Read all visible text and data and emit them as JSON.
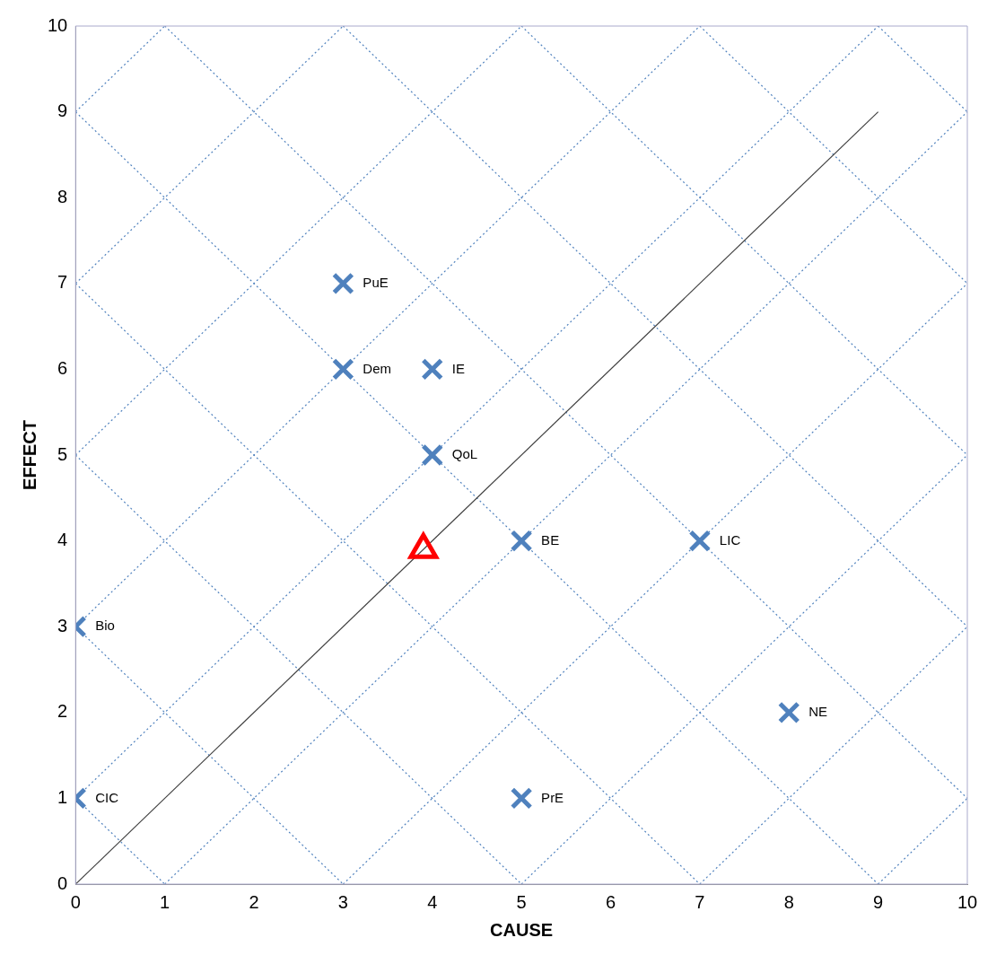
{
  "chart_data": {
    "type": "scatter",
    "xlabel": "CAUSE",
    "ylabel": "EFFECT",
    "xlim": [
      0,
      10
    ],
    "ylim": [
      0,
      10
    ],
    "xticks": [
      0,
      1,
      2,
      3,
      4,
      5,
      6,
      7,
      8,
      9,
      10
    ],
    "yticks": [
      0,
      1,
      2,
      3,
      4,
      5,
      6,
      7,
      8,
      9,
      10
    ],
    "grid": false,
    "legend": false,
    "series": [
      {
        "type": "line",
        "color": "#4f81bd",
        "line_style": "dotted",
        "marker": "none",
        "x": [
          0,
          1
        ],
        "values": [
          1,
          0
        ]
      },
      {
        "type": "line",
        "color": "#4f81bd",
        "line_style": "dotted",
        "marker": "none",
        "x": [
          0,
          3
        ],
        "values": [
          3,
          0
        ]
      },
      {
        "type": "line",
        "color": "#4f81bd",
        "line_style": "dotted",
        "marker": "none",
        "x": [
          0,
          5
        ],
        "values": [
          5,
          0
        ]
      },
      {
        "type": "line",
        "color": "#4f81bd",
        "line_style": "dotted",
        "marker": "none",
        "x": [
          0,
          7
        ],
        "values": [
          7,
          0
        ]
      },
      {
        "type": "line",
        "color": "#4f81bd",
        "line_style": "dotted",
        "marker": "none",
        "x": [
          0,
          9
        ],
        "values": [
          9,
          0
        ]
      },
      {
        "type": "line",
        "color": "#4f81bd",
        "line_style": "dotted",
        "marker": "none",
        "x": [
          1,
          10
        ],
        "values": [
          10,
          1
        ]
      },
      {
        "type": "line",
        "color": "#4f81bd",
        "line_style": "dotted",
        "marker": "none",
        "x": [
          3,
          10
        ],
        "values": [
          10,
          3
        ]
      },
      {
        "type": "line",
        "color": "#4f81bd",
        "line_style": "dotted",
        "marker": "none",
        "x": [
          5,
          10
        ],
        "values": [
          10,
          5
        ]
      },
      {
        "type": "line",
        "color": "#4f81bd",
        "line_style": "dotted",
        "marker": "none",
        "x": [
          7,
          10
        ],
        "values": [
          10,
          7
        ]
      },
      {
        "type": "line",
        "color": "#4f81bd",
        "line_style": "dotted",
        "marker": "none",
        "x": [
          9,
          10
        ],
        "values": [
          10,
          9
        ]
      },
      {
        "type": "line",
        "color": "#4f81bd",
        "line_style": "dotted",
        "marker": "none",
        "x": [
          0,
          1
        ],
        "values": [
          9,
          10
        ]
      },
      {
        "type": "line",
        "color": "#4f81bd",
        "line_style": "dotted",
        "marker": "none",
        "x": [
          0,
          3
        ],
        "values": [
          7,
          10
        ]
      },
      {
        "type": "line",
        "color": "#4f81bd",
        "line_style": "dotted",
        "marker": "none",
        "x": [
          0,
          5
        ],
        "values": [
          5,
          10
        ]
      },
      {
        "type": "line",
        "color": "#4f81bd",
        "line_style": "dotted",
        "marker": "none",
        "x": [
          0,
          7
        ],
        "values": [
          3,
          10
        ]
      },
      {
        "type": "line",
        "color": "#4f81bd",
        "line_style": "dotted",
        "marker": "none",
        "x": [
          0,
          9
        ],
        "values": [
          1,
          10
        ]
      },
      {
        "type": "line",
        "color": "#4f81bd",
        "line_style": "dotted",
        "marker": "none",
        "x": [
          1,
          10
        ],
        "values": [
          0,
          9
        ]
      },
      {
        "type": "line",
        "color": "#4f81bd",
        "line_style": "dotted",
        "marker": "none",
        "x": [
          3,
          10
        ],
        "values": [
          0,
          7
        ]
      },
      {
        "type": "line",
        "color": "#4f81bd",
        "line_style": "dotted",
        "marker": "none",
        "x": [
          5,
          10
        ],
        "values": [
          0,
          5
        ]
      },
      {
        "type": "line",
        "color": "#4f81bd",
        "line_style": "dotted",
        "marker": "none",
        "x": [
          7,
          10
        ],
        "values": [
          0,
          3
        ]
      },
      {
        "type": "line",
        "color": "#4f81bd",
        "line_style": "dotted",
        "marker": "none",
        "x": [
          9,
          10
        ],
        "values": [
          0,
          1
        ]
      },
      {
        "type": "line",
        "color": "#404040",
        "line_style": "solid",
        "marker": "none",
        "x": [
          0,
          9
        ],
        "values": [
          0,
          9
        ]
      },
      {
        "color": "#4f81bd",
        "marker": "cross",
        "x": [
          0,
          0,
          3,
          3,
          4,
          4,
          5,
          7,
          8,
          5
        ],
        "values": [
          3,
          1,
          7,
          6,
          6,
          5,
          4,
          4,
          2,
          1
        ],
        "value_labels": [
          "Bio",
          "CIC",
          "PuE",
          "Dem",
          "IE",
          "QoL",
          "BE",
          "LIC",
          "NE",
          "PrE"
        ]
      },
      {
        "color": "#ff0000",
        "marker": "triangle",
        "x": [
          3.9
        ],
        "values": [
          3.9
        ]
      }
    ]
  }
}
